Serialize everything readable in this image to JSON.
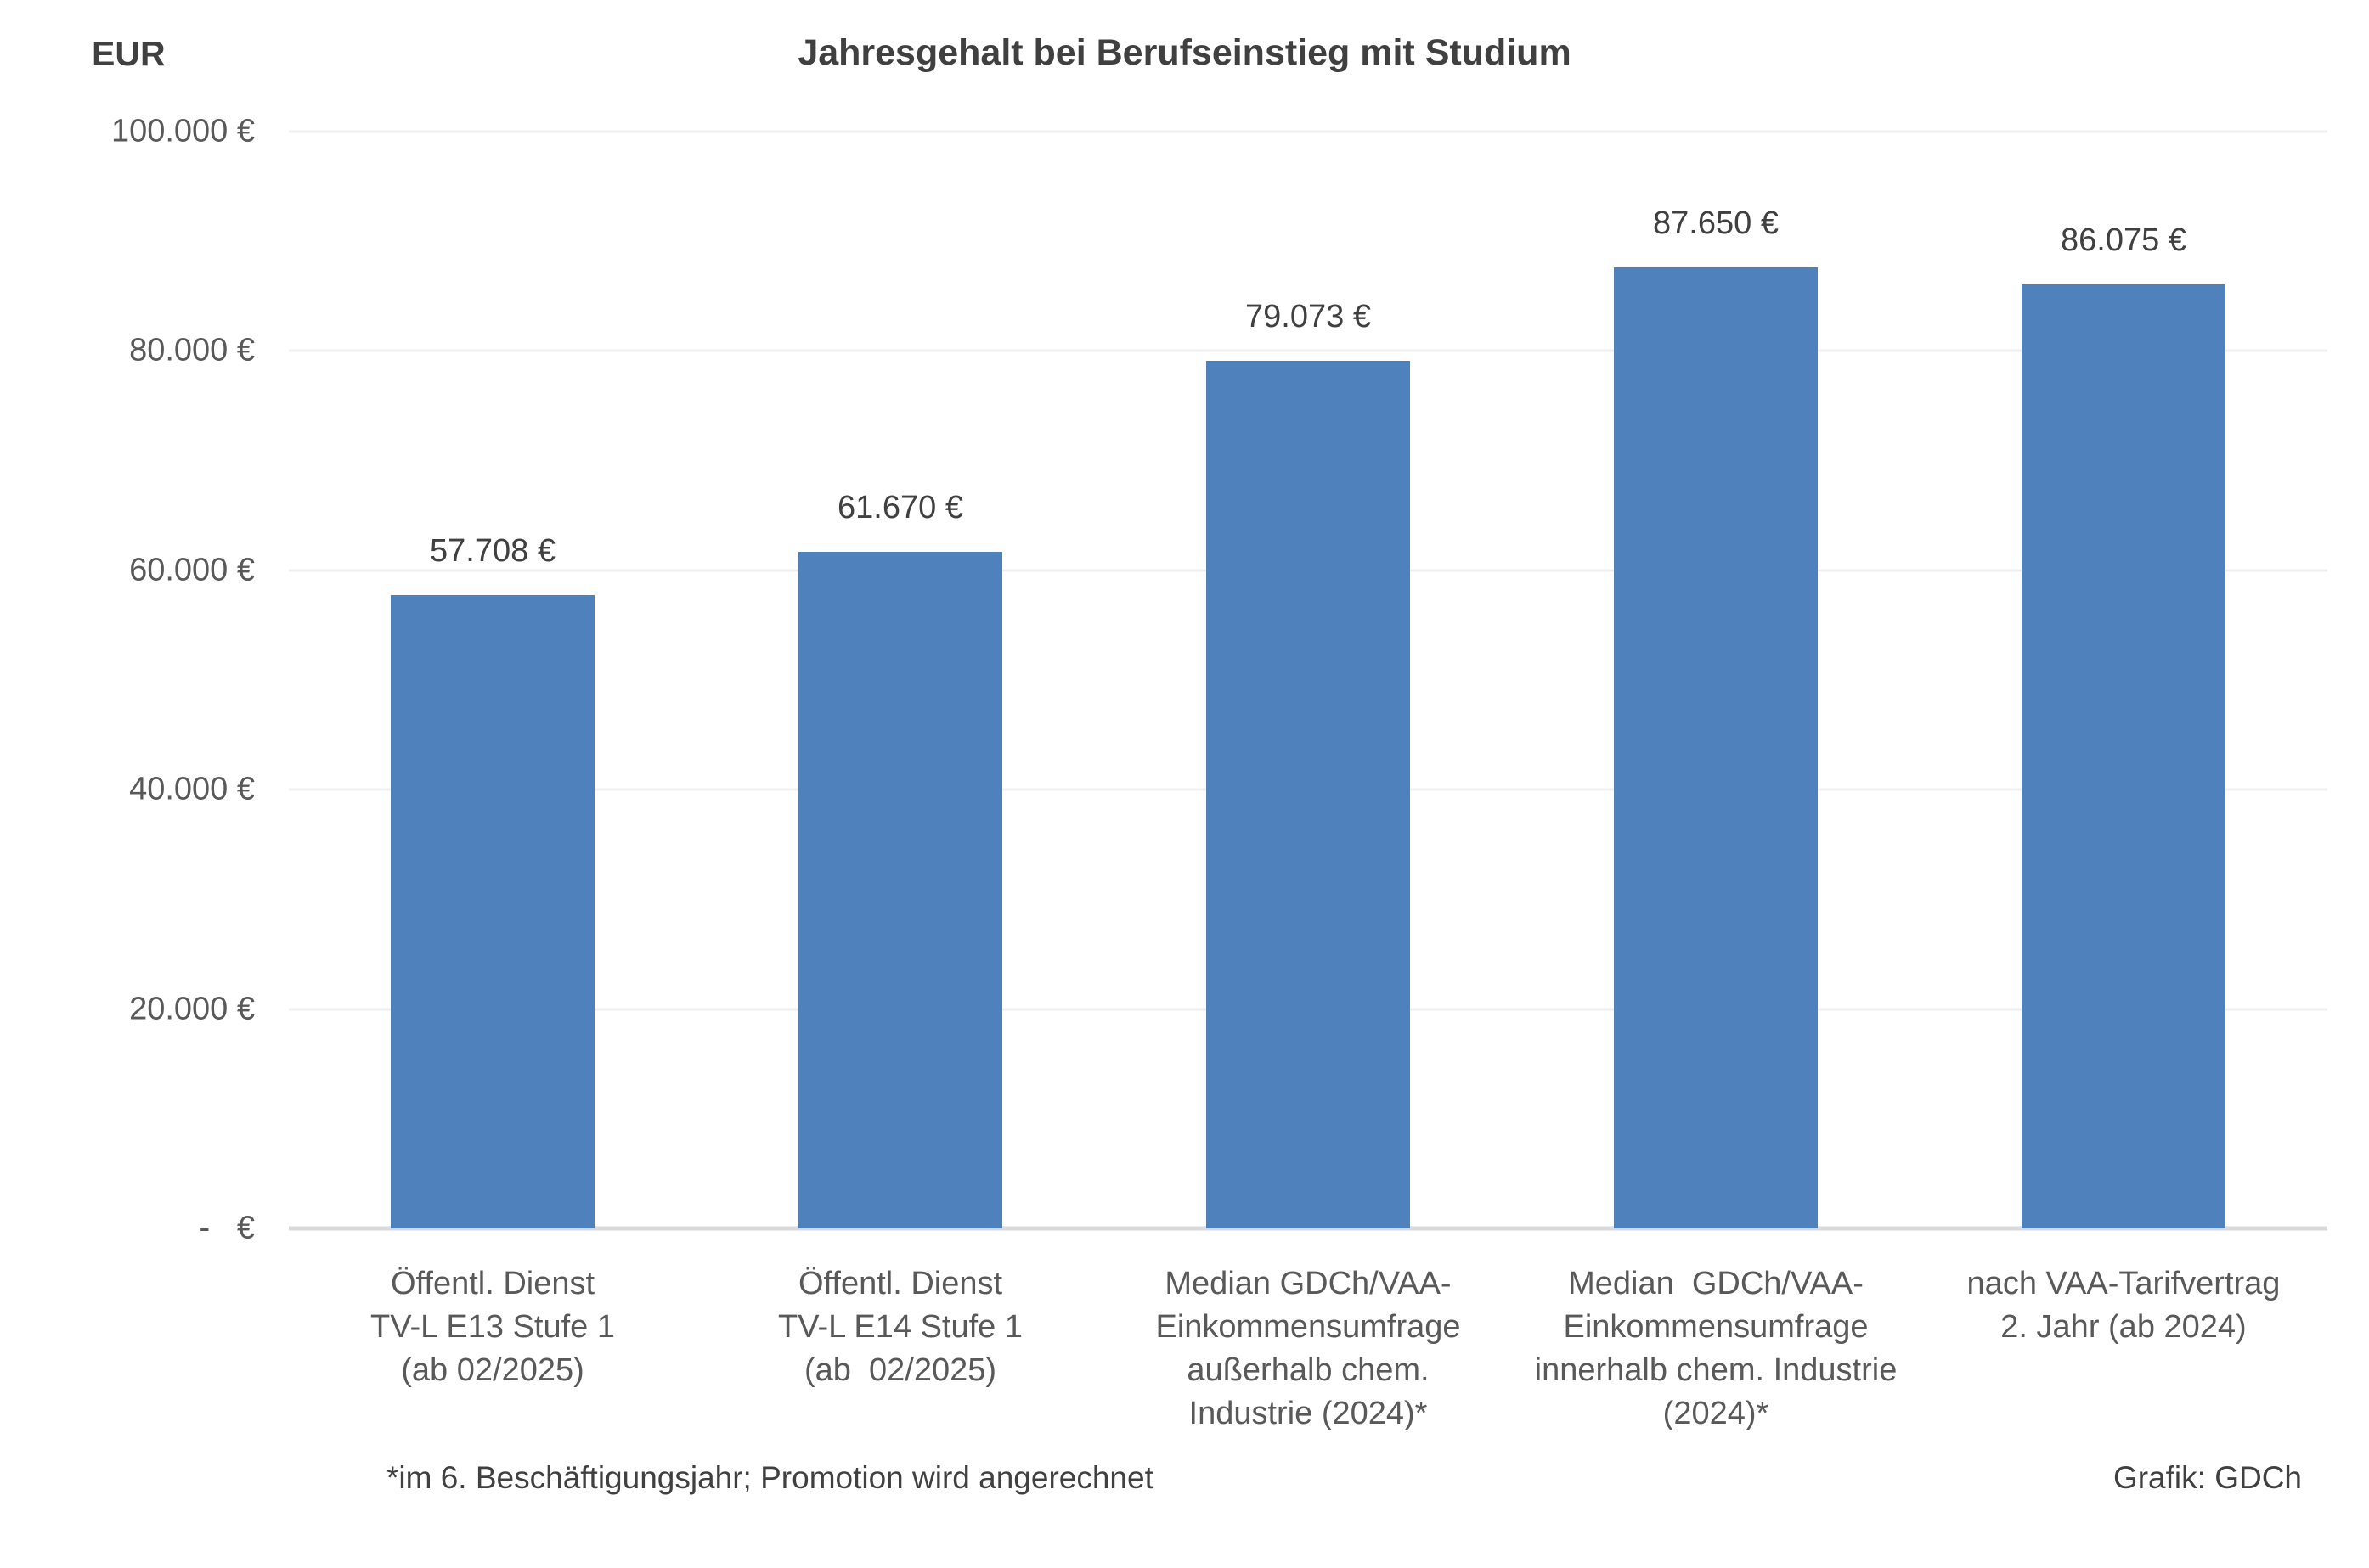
{
  "page": {
    "background_color": "#ffffff",
    "title": "Jahresgehalt bei Berufseinstieg mit Studium",
    "axis_unit_label": "EUR"
  },
  "chart_data": {
    "type": "bar",
    "title": "Jahresgehalt bei Berufseinstieg mit Studium",
    "xlabel": "",
    "ylabel": "EUR",
    "ylim": [
      0,
      100000
    ],
    "grid": true,
    "legend": false,
    "bar_color": "#4f81bd",
    "grid_color": "#efefef",
    "baseline_color": "#d9d9d9",
    "title_color": "#404040",
    "tick_label_color": "#595959",
    "value_label_color": "#404040",
    "yticks": [
      {
        "value": 100000,
        "label": "100.000 €"
      },
      {
        "value": 80000,
        "label": "80.000 €"
      },
      {
        "value": 60000,
        "label": "60.000 €"
      },
      {
        "value": 40000,
        "label": "40.000 €"
      },
      {
        "value": 20000,
        "label": "20.000 €"
      },
      {
        "value": 0,
        "label": "-   €"
      }
    ],
    "categories": [
      "Öffentl. Dienst TV-L E13 Stufe 1 (ab 02/2025)",
      "Öffentl. Dienst TV-L E14 Stufe 1 (ab 02/2025)",
      "Median GDCh/VAA-Einkommensumfrage außerhalb chem. Industrie (2024)*",
      "Median GDCh/VAA-Einkommensumfrage innerhalb chem. Industrie (2024)*",
      "nach VAA-Tarifvertrag 2. Jahr (ab 2024)"
    ],
    "category_lines": [
      [
        "Öffentl. Dienst",
        "TV-L E13 Stufe 1",
        "(ab 02/2025)"
      ],
      [
        "Öffentl. Dienst",
        "TV-L E14 Stufe 1",
        "(ab  02/2025)"
      ],
      [
        "Median GDCh/VAA-",
        "Einkommensumfrage",
        "außerhalb chem.",
        "Industrie (2024)*"
      ],
      [
        "Median  GDCh/VAA-",
        "Einkommensumfrage",
        "innerhalb chem. Industrie",
        "(2024)*"
      ],
      [
        "nach VAA-Tarifvertrag",
        "2. Jahr (ab 2024)"
      ]
    ],
    "values": [
      57708,
      61670,
      79073,
      87650,
      86075
    ],
    "value_labels": [
      "57.708 €",
      "61.670 €",
      "79.073 €",
      "87.650 €",
      "86.075 €"
    ]
  },
  "footer": {
    "footnote": "*im 6. Beschäftigungsjahr; Promotion wird angerechnet",
    "credit": "Grafik: GDCh"
  }
}
